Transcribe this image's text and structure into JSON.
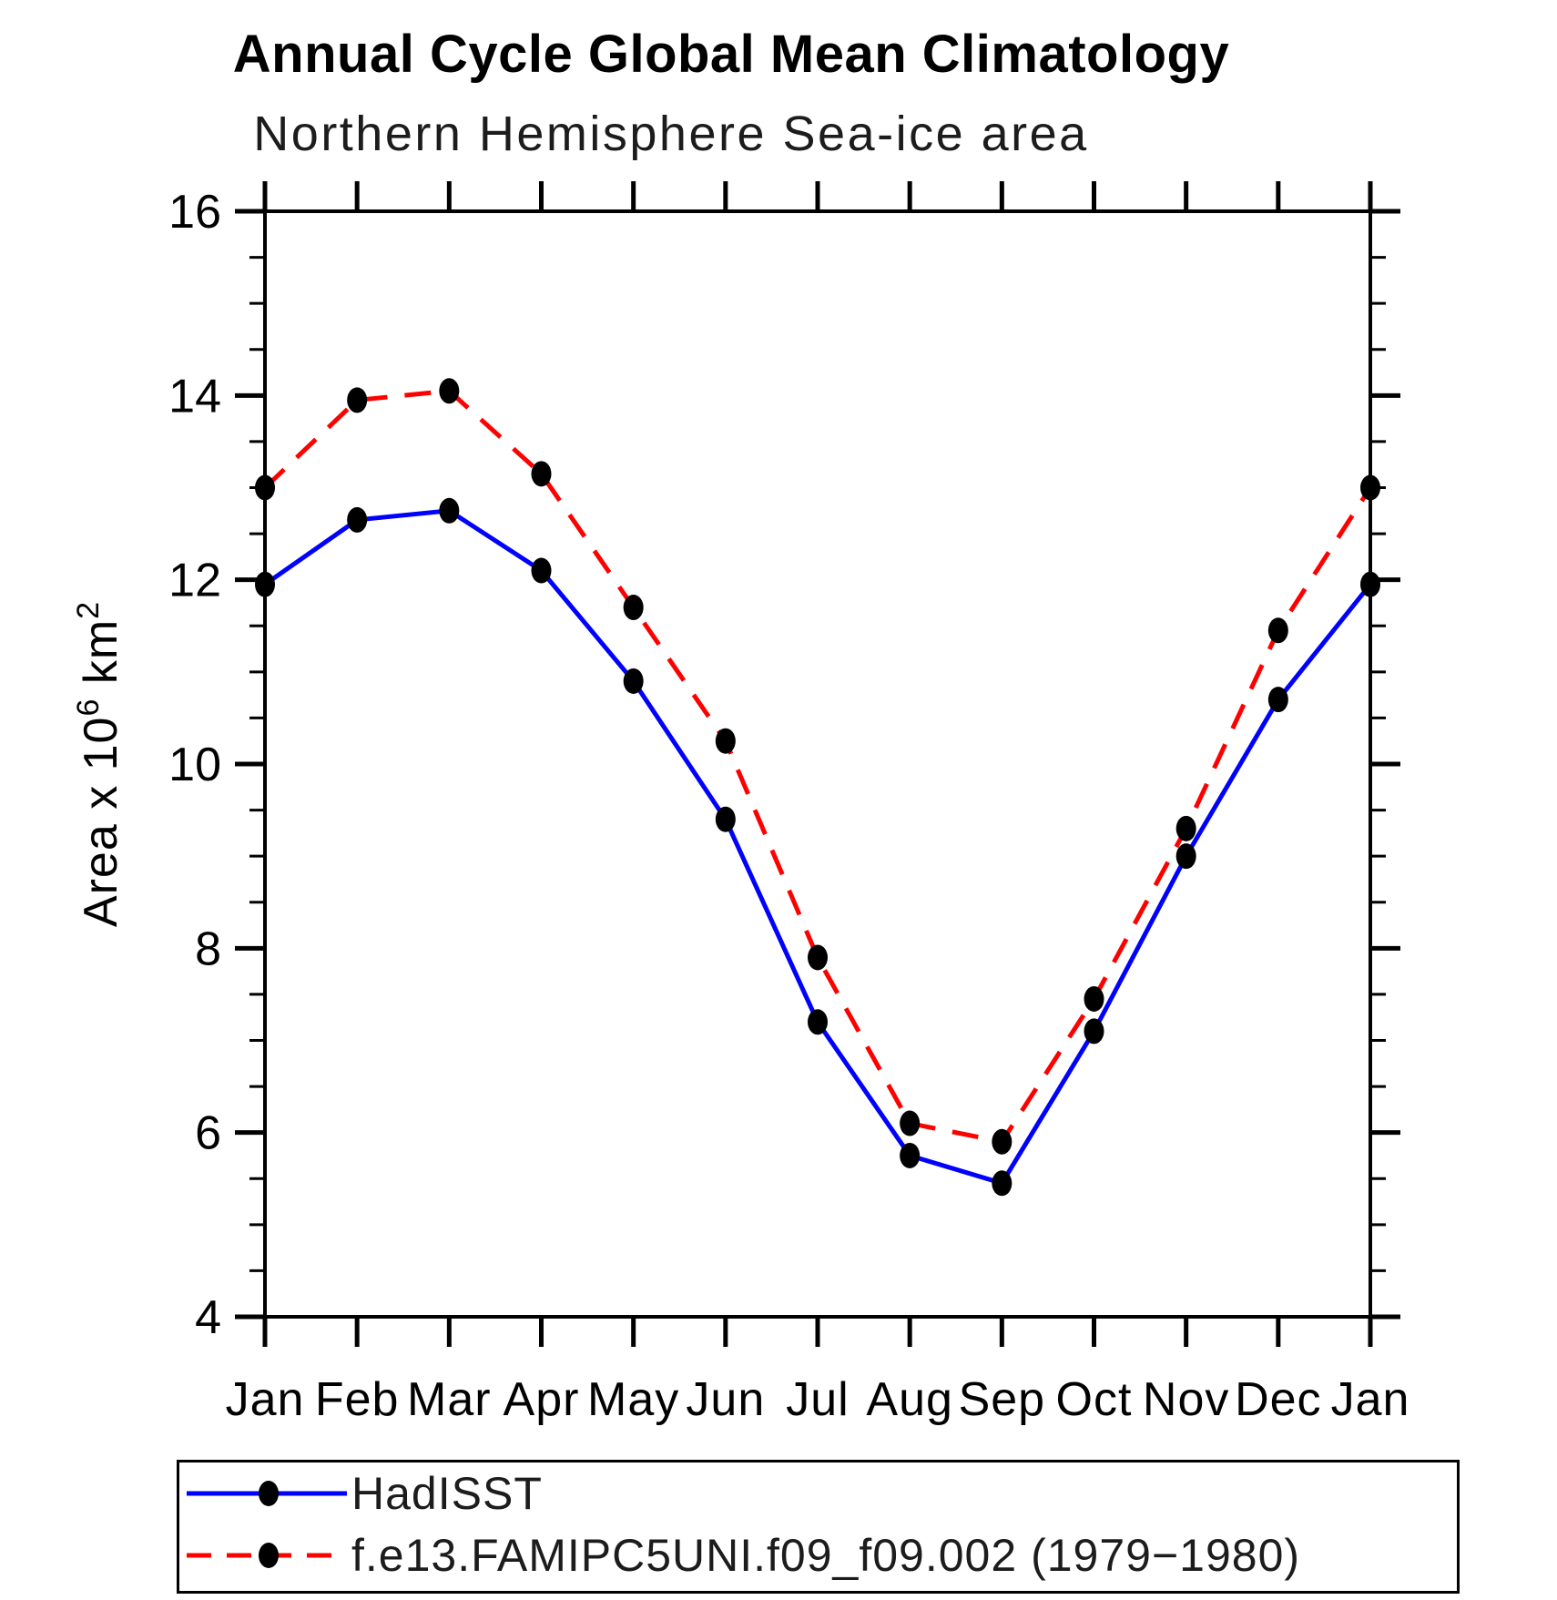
{
  "page": {
    "background": "#ffffff"
  },
  "chart_data": {
    "type": "line",
    "title": "Annual Cycle Global Mean Climatology",
    "subtitle": "Northern Hemisphere Sea-ice area",
    "categories": [
      "Jan",
      "Feb",
      "Mar",
      "Apr",
      "May",
      "Jun",
      "Jul",
      "Aug",
      "Sep",
      "Oct",
      "Nov",
      "Dec",
      "Jan"
    ],
    "series": [
      {
        "name": "HadISST",
        "color": "#0000ff",
        "line_style": "solid",
        "marker": "filled-circle",
        "marker_color": "#000000",
        "values": [
          11.95,
          12.65,
          12.75,
          12.1,
          10.9,
          9.4,
          7.2,
          5.75,
          5.45,
          7.1,
          9.0,
          10.7,
          11.95
        ]
      },
      {
        "name": "f.e13.FAMIPC5UNI.f09_f09.002 (1979−1980)",
        "color": "#ff0000",
        "line_style": "dashed",
        "marker": "filled-circle",
        "marker_color": "#000000",
        "values": [
          13.0,
          13.95,
          14.05,
          13.15,
          11.7,
          10.25,
          7.9,
          6.1,
          5.9,
          7.45,
          9.3,
          11.45,
          13.0
        ]
      }
    ],
    "xlabel": "",
    "ylabel": "Area x 10^6 km^2",
    "ylabel_parts": {
      "prefix": "Area x 10",
      "sup1": "6",
      "mid": " km",
      "sup2": "2"
    },
    "ylim": [
      4,
      16
    ],
    "yticks": [
      16,
      14,
      12,
      10,
      8,
      6,
      4
    ],
    "ytick_step": 2,
    "y_minor_step": 0.5,
    "grid": false,
    "axis_color": "#000000",
    "legend_position": "bottom-left"
  }
}
